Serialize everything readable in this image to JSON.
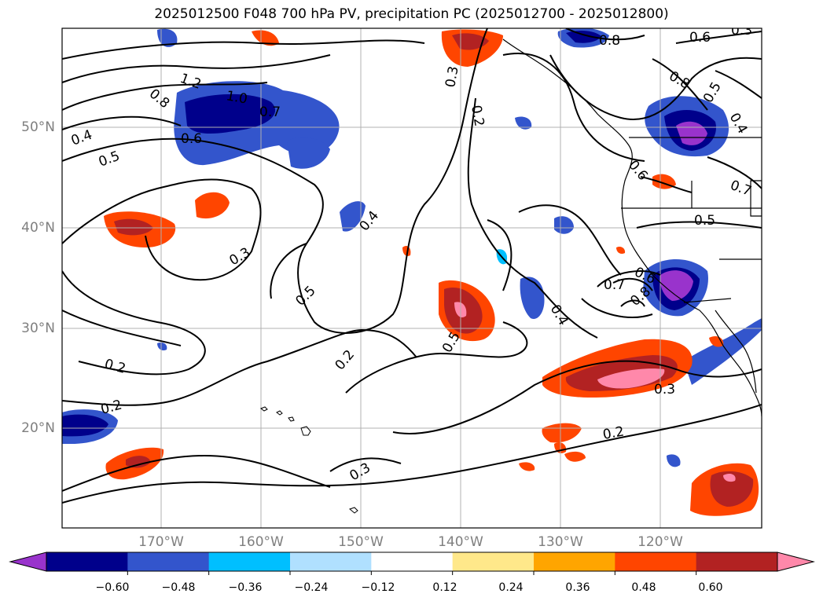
{
  "title": "2025012500 F048 700 hPa PV, precipitation PC (2025012700 - 2025012800)",
  "map": {
    "lat_labels": [
      "50°N",
      "40°N",
      "30°N",
      "20°N"
    ],
    "lon_labels": [
      "170°W",
      "160°W",
      "150°W",
      "140°W",
      "130°W",
      "120°W"
    ],
    "contour_labels": [
      "1.2",
      "1.0",
      "0.8",
      "0.7",
      "0.6",
      "0.4",
      "0.5",
      "0.3",
      "0.2",
      "0.3",
      "0.2",
      "0.8",
      "0.6",
      "0.8",
      "0.5",
      "0.4",
      "0.6",
      "0.7",
      "0.5",
      "0.4",
      "0.4",
      "0.5",
      "0.3",
      "0.7",
      "0.6",
      "0.8",
      "0.5",
      "0.2",
      "0.3",
      "0.2",
      "0.2",
      "0.3"
    ],
    "land_color": "#000000",
    "grid_color": "#b0b0b0"
  },
  "colorbar": {
    "tick_labels": [
      "−0.60",
      "−0.48",
      "−0.36",
      "−0.24",
      "−0.12",
      "0.12",
      "0.24",
      "0.36",
      "0.48",
      "0.60"
    ],
    "colors": [
      "#9933cc",
      "#00008b",
      "#3355cc",
      "#00bfff",
      "#b0e0ff",
      "#ffffff",
      "#ffe88a",
      "#ffa500",
      "#ff4500",
      "#b22222",
      "#ff88aa"
    ]
  }
}
